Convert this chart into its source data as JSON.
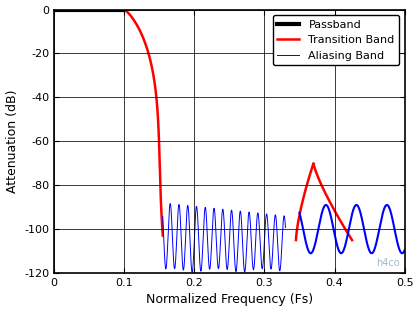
{
  "title": "",
  "xlabel": "Normalized Frequency (Fs)",
  "ylabel": "Attenuation (dB)",
  "xlim": [
    0,
    0.5
  ],
  "ylim": [
    -120,
    0
  ],
  "yticks": [
    0,
    -20,
    -40,
    -60,
    -80,
    -100,
    -120
  ],
  "xticks": [
    0,
    0.1,
    0.2,
    0.3,
    0.4,
    0.5
  ],
  "background_color": "#ffffff",
  "grid_color": "#000000",
  "passband_color": "#000000",
  "transition_color": "#ff0000",
  "aliasing_color": "#0000ff",
  "watermark_text": "h4co",
  "watermark_color": "#a0b8c8",
  "legend_entries": [
    "Passband",
    "Transition Band",
    "Aliasing Band"
  ],
  "passband_lw": 3.0,
  "transition_lw": 1.8,
  "aliasing_lw_dense": 0.7,
  "aliasing_lw_wide": 1.5,
  "legend_fontsize": 8,
  "axis_fontsize": 9,
  "tick_fontsize": 8
}
